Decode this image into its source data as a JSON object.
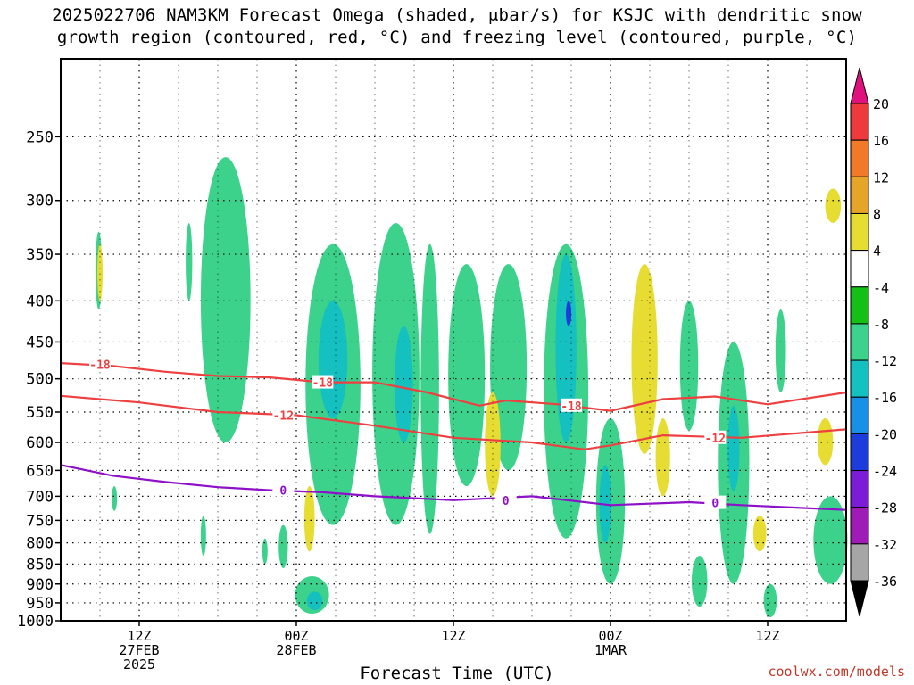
{
  "title": {
    "line1": "2025022706 NAM3KM Forecast Omega (shaded, μbar/s) for KSJC with dendritic snow",
    "line2": "growth region (contoured, red, °C) and freezing level (contoured, purple, °C)"
  },
  "credit": "coolwx.com/models",
  "chart_data": {
    "type": "heatmap",
    "title": "2025022706 NAM3KM Forecast Omega (shaded, μbar/s) for KSJC with dendritic snow growth region (contoured, red, °C) and freezing level (contoured, purple, °C)",
    "xlabel": "Forecast Time (UTC)",
    "ylabel": "",
    "y_scale": "log-pressure, inverted",
    "ylim": [
      1000,
      200
    ],
    "xlim_hours_from_27FEB06Z": [
      0,
      60
    ],
    "grid": true,
    "y_ticks": [
      250,
      300,
      350,
      400,
      450,
      500,
      550,
      600,
      650,
      700,
      750,
      800,
      850,
      900,
      950,
      1000
    ],
    "x_ticks": [
      {
        "hour": 6,
        "lines": [
          "12Z",
          "27FEB",
          "2025"
        ]
      },
      {
        "hour": 18,
        "lines": [
          "00Z",
          "28FEB"
        ]
      },
      {
        "hour": 30,
        "lines": [
          "12Z"
        ]
      },
      {
        "hour": 42,
        "lines": [
          "00Z",
          "1MAR"
        ]
      },
      {
        "hour": 54,
        "lines": [
          "12Z"
        ]
      }
    ],
    "colorbar": {
      "labels": [
        "20",
        "16",
        "12",
        "8",
        "4",
        "-4",
        "-8",
        "-12",
        "-16",
        "-20",
        "-24",
        "-28",
        "-32",
        "-36"
      ],
      "colors": [
        "#e0117e",
        "#ee3a3a",
        "#f07a28",
        "#e6a429",
        "#e6dc32",
        "#ffffff",
        "#13c013",
        "#3cd28c",
        "#14c0c0",
        "#1890e6",
        "#1c3cdc",
        "#7c1cd8",
        "#a01ab8",
        "#a6a6a6",
        "#000000"
      ]
    },
    "contours": [
      {
        "label": "-18",
        "color": "#ee4040",
        "points": [
          [
            0,
            478
          ],
          [
            4,
            482
          ],
          [
            8,
            490
          ],
          [
            12,
            496
          ],
          [
            16,
            498
          ],
          [
            20,
            505
          ],
          [
            24,
            505
          ],
          [
            28,
            520
          ],
          [
            30,
            530
          ],
          [
            32,
            540
          ],
          [
            34,
            532
          ],
          [
            38,
            538
          ],
          [
            42,
            548
          ],
          [
            46,
            530
          ],
          [
            50,
            526
          ],
          [
            54,
            538
          ],
          [
            60,
            520
          ]
        ]
      },
      {
        "label": "-12",
        "color": "#ee4040",
        "points": [
          [
            0,
            525
          ],
          [
            6,
            535
          ],
          [
            12,
            550
          ],
          [
            18,
            555
          ],
          [
            24,
            572
          ],
          [
            30,
            592
          ],
          [
            36,
            600
          ],
          [
            40,
            612
          ],
          [
            42,
            605
          ],
          [
            46,
            588
          ],
          [
            52,
            592
          ],
          [
            60,
            578
          ]
        ]
      },
      {
        "label": "0",
        "color": "#8e10c8",
        "points": [
          [
            0,
            640
          ],
          [
            4,
            660
          ],
          [
            8,
            672
          ],
          [
            12,
            682
          ],
          [
            16,
            688
          ],
          [
            20,
            692
          ],
          [
            24,
            700
          ],
          [
            30,
            708
          ],
          [
            36,
            700
          ],
          [
            42,
            718
          ],
          [
            48,
            712
          ],
          [
            52,
            718
          ],
          [
            60,
            728
          ]
        ]
      }
    ],
    "contour_labels": [
      {
        "text": "-18",
        "hour": 3,
        "p": 480
      },
      {
        "text": "-18",
        "hour": 20,
        "p": 505
      },
      {
        "text": "-18",
        "hour": 39,
        "p": 540
      },
      {
        "text": "-12",
        "hour": 17,
        "p": 555
      },
      {
        "text": "-12",
        "hour": 50,
        "p": 592
      },
      {
        "text": "0",
        "hour": 17,
        "p": 688
      },
      {
        "text": "0",
        "hour": 34,
        "p": 708
      },
      {
        "text": "0",
        "hour": 50,
        "p": 713
      }
    ],
    "shaded_regions": [
      {
        "level": "-4",
        "hour": 2.9,
        "p_top": 328,
        "p_bot": 410,
        "w": 0.5,
        "color_key": "-8"
      },
      {
        "level": "4",
        "hour": 3.0,
        "p_top": 340,
        "p_bot": 400,
        "w": 0.4,
        "color_key": "4"
      },
      {
        "level": "-4",
        "hour": 9.8,
        "p_top": 320,
        "p_bot": 400,
        "w": 0.5,
        "color_key": "-8"
      },
      {
        "level": "-4",
        "hour": 12.6,
        "p_top": 265,
        "p_bot": 600,
        "w": 3.8,
        "color_key": "-8"
      },
      {
        "level": "-4",
        "hour": 20.8,
        "p_top": 340,
        "p_bot": 760,
        "w": 4.2,
        "color_key": "-8"
      },
      {
        "level": "-8",
        "hour": 20.8,
        "p_top": 400,
        "p_bot": 560,
        "w": 2.2,
        "color_key": "-12"
      },
      {
        "level": "-4",
        "hour": 25.6,
        "p_top": 320,
        "p_bot": 760,
        "w": 3.6,
        "color_key": "-8"
      },
      {
        "level": "-8",
        "hour": 26.2,
        "p_top": 430,
        "p_bot": 600,
        "w": 1.4,
        "color_key": "-12"
      },
      {
        "level": "-4",
        "hour": 28.2,
        "p_top": 340,
        "p_bot": 780,
        "w": 1.4,
        "color_key": "-8"
      },
      {
        "level": "-4",
        "hour": 31.0,
        "p_top": 360,
        "p_bot": 680,
        "w": 2.8,
        "color_key": "-8"
      },
      {
        "level": "-4",
        "hour": 34.2,
        "p_top": 360,
        "p_bot": 650,
        "w": 2.8,
        "color_key": "-8"
      },
      {
        "level": "-4",
        "hour": 38.6,
        "p_top": 340,
        "p_bot": 790,
        "w": 3.4,
        "color_key": "-8"
      },
      {
        "level": "-8",
        "hour": 38.6,
        "p_top": 350,
        "p_bot": 600,
        "w": 1.6,
        "color_key": "-12"
      },
      {
        "level": "-16",
        "hour": 38.8,
        "p_top": 400,
        "p_bot": 430,
        "w": 0.3,
        "color_key": "-20"
      },
      {
        "level": "-4",
        "hour": 42.0,
        "p_top": 560,
        "p_bot": 900,
        "w": 2.2,
        "color_key": "-8"
      },
      {
        "level": "-8",
        "hour": 41.6,
        "p_top": 640,
        "p_bot": 800,
        "w": 0.9,
        "color_key": "-12"
      },
      {
        "level": "4",
        "hour": 44.6,
        "p_top": 360,
        "p_bot": 620,
        "w": 2.0,
        "color_key": "4"
      },
      {
        "level": "-4",
        "hour": 48.0,
        "p_top": 400,
        "p_bot": 580,
        "w": 1.4,
        "color_key": "-8"
      },
      {
        "level": "-4",
        "hour": 51.4,
        "p_top": 450,
        "p_bot": 900,
        "w": 2.4,
        "color_key": "-8"
      },
      {
        "level": "-8",
        "hour": 51.4,
        "p_top": 540,
        "p_bot": 690,
        "w": 0.9,
        "color_key": "-12"
      },
      {
        "level": "-4",
        "hour": 55.0,
        "p_top": 410,
        "p_bot": 520,
        "w": 0.8,
        "color_key": "-8"
      },
      {
        "level": "4",
        "hour": 59.0,
        "p_top": 290,
        "p_bot": 320,
        "w": 1.2,
        "color_key": "4"
      },
      {
        "level": "4",
        "hour": 58.4,
        "p_top": 560,
        "p_bot": 640,
        "w": 1.2,
        "color_key": "4"
      },
      {
        "level": "4",
        "hour": 19.0,
        "p_top": 680,
        "p_bot": 820,
        "w": 0.8,
        "color_key": "4"
      },
      {
        "level": "4",
        "hour": 33.0,
        "p_top": 520,
        "p_bot": 700,
        "w": 1.2,
        "color_key": "4"
      },
      {
        "level": "4",
        "hour": 46.0,
        "p_top": 560,
        "p_bot": 700,
        "w": 1.1,
        "color_key": "4"
      },
      {
        "level": "4",
        "hour": 53.4,
        "p_top": 740,
        "p_bot": 820,
        "w": 1.0,
        "color_key": "4"
      },
      {
        "level": "-4",
        "hour": 19.2,
        "p_top": 880,
        "p_bot": 980,
        "w": 2.6,
        "color_key": "-8"
      },
      {
        "level": "-8",
        "hour": 19.4,
        "p_top": 920,
        "p_bot": 970,
        "w": 1.2,
        "color_key": "-12"
      },
      {
        "level": "-4",
        "hour": 58.8,
        "p_top": 700,
        "p_bot": 900,
        "w": 2.6,
        "color_key": "-8"
      },
      {
        "level": "-4",
        "hour": 48.8,
        "p_top": 830,
        "p_bot": 960,
        "w": 1.2,
        "color_key": "-8"
      },
      {
        "level": "-4",
        "hour": 54.2,
        "p_top": 900,
        "p_bot": 990,
        "w": 1.0,
        "color_key": "-8"
      },
      {
        "level": "-4",
        "hour": 4.1,
        "p_top": 680,
        "p_bot": 730,
        "w": 0.3,
        "color_key": "-8"
      },
      {
        "level": "-4",
        "hour": 10.9,
        "p_top": 740,
        "p_bot": 830,
        "w": 0.4,
        "color_key": "-8"
      },
      {
        "level": "-4",
        "hour": 15.6,
        "p_top": 790,
        "p_bot": 850,
        "w": 0.4,
        "color_key": "-8"
      },
      {
        "level": "-4",
        "hour": 17.0,
        "p_top": 760,
        "p_bot": 860,
        "w": 0.7,
        "color_key": "-8"
      }
    ],
    "ground_color": "#a0522d"
  }
}
